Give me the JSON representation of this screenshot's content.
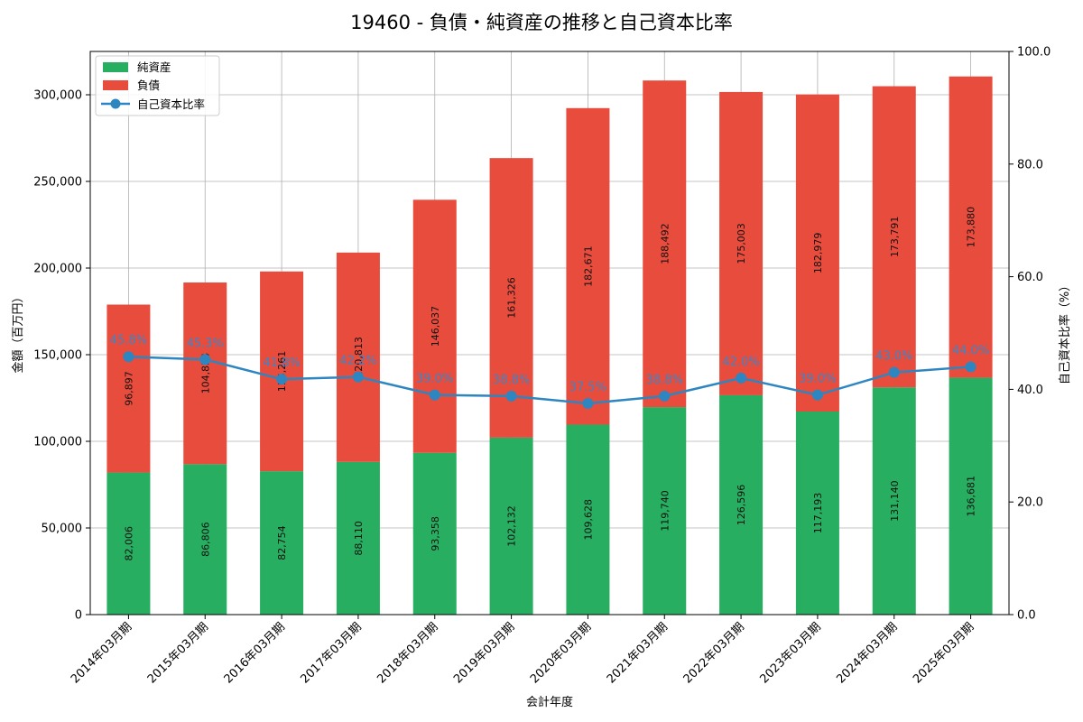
{
  "chart_data": {
    "type": "bar",
    "stacked": true,
    "title": "19460 - 負債・純資産の推移と自己資本比率",
    "xlabel": "会計年度",
    "ylabel": "金額（百万円）",
    "y2label": "自己資本比率（%）",
    "ylim": [
      0,
      325000
    ],
    "y2lim": [
      0,
      100
    ],
    "yticks": [
      "0",
      "50,000",
      "100,000",
      "150,000",
      "200,000",
      "250,000",
      "300,000"
    ],
    "y2ticks": [
      "0.0",
      "20.0",
      "40.0",
      "60.0",
      "80.0",
      "100.0"
    ],
    "grid": true,
    "legend_position": "top-left",
    "categories": [
      "2014年03月期",
      "2015年03月期",
      "2016年03月期",
      "2017年03月期",
      "2018年03月期",
      "2019年03月期",
      "2020年03月期",
      "2021年03月期",
      "2022年03月期",
      "2023年03月期",
      "2024年03月期",
      "2025年03月期"
    ],
    "series": [
      {
        "name": "純資産",
        "axis": "left",
        "color": "#27ae60",
        "values": [
          82006,
          86806,
          82754,
          88110,
          93358,
          102132,
          109628,
          119740,
          126596,
          117193,
          131140,
          136681
        ],
        "labels": [
          "82,006",
          "86,806",
          "82,754",
          "88,110",
          "93,358",
          "102,132",
          "109,628",
          "119,740",
          "126,596",
          "117,193",
          "131,140",
          "136,681"
        ]
      },
      {
        "name": "負債",
        "axis": "left",
        "color": "#e74c3c",
        "values": [
          96897,
          104854,
          115261,
          120813,
          146037,
          161326,
          182671,
          188492,
          175003,
          182979,
          173791,
          173880
        ],
        "labels": [
          "96,897",
          "104,854",
          "115,261",
          "120,813",
          "146,037",
          "161,326",
          "182,671",
          "188,492",
          "175,003",
          "182,979",
          "173,791",
          "173,880"
        ]
      },
      {
        "name": "自己資本比率",
        "axis": "right",
        "type": "line",
        "color": "#2e86c1",
        "values": [
          45.8,
          45.3,
          41.8,
          42.2,
          39.0,
          38.8,
          37.5,
          38.8,
          42.0,
          39.0,
          43.0,
          44.0
        ],
        "labels": [
          "45.8%",
          "45.3%",
          "41.8%",
          "42.2%",
          "39.0%",
          "38.8%",
          "37.5%",
          "38.8%",
          "42.0%",
          "39.0%",
          "43.0%",
          "44.0%"
        ]
      }
    ]
  }
}
